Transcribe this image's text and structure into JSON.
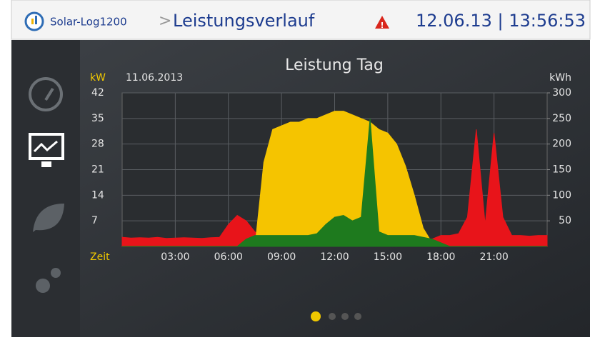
{
  "header": {
    "app": "Solar-Log1200",
    "separator": ">",
    "page": "Leistungsverlauf",
    "datetime": "12.06.13 | 13:56:53"
  },
  "chart_data": {
    "type": "area",
    "title": "Leistung Tag",
    "date": "11.06.2013",
    "ylabel": "kW",
    "y2label": "kWh",
    "xlabel": "Zeit",
    "x": [
      0,
      0.5,
      1,
      1.5,
      2,
      2.5,
      3,
      3.5,
      4,
      4.5,
      5,
      5.5,
      6,
      6.5,
      7,
      7.5,
      8,
      8.5,
      9,
      9.5,
      10,
      10.5,
      11,
      11.5,
      12,
      12.5,
      13,
      13.5,
      14,
      14.5,
      15,
      15.5,
      16,
      16.5,
      17,
      17.5,
      18,
      18.5,
      19,
      19.5,
      20,
      20.5,
      21,
      21.5,
      22,
      22.5,
      23,
      23.5,
      24
    ],
    "series": [
      {
        "color": "#e8141a",
        "values": [
          2.5,
          2.3,
          2.4,
          2.3,
          2.5,
          2.2,
          2.3,
          2.4,
          2.3,
          2.2,
          2.4,
          2.5,
          6,
          8.5,
          7,
          4,
          2,
          2,
          2,
          2,
          2,
          2,
          2,
          2,
          2,
          2,
          2,
          2,
          2,
          2,
          2,
          2,
          2,
          2,
          2,
          2,
          3,
          3,
          3.5,
          8,
          32,
          6,
          31,
          8,
          3,
          3,
          2.8,
          3,
          3
        ]
      },
      {
        "color": "#f5c400",
        "values": [
          0,
          0,
          0,
          0,
          0,
          0,
          0,
          0,
          0,
          0,
          0,
          0,
          0,
          0,
          0,
          0,
          23,
          32,
          33,
          34,
          34,
          35,
          35,
          36,
          37,
          37,
          36,
          35,
          34,
          32,
          31,
          28,
          22,
          14,
          5,
          1,
          0,
          0,
          0,
          0,
          0,
          0,
          0,
          0,
          0,
          0,
          0,
          0,
          0
        ]
      },
      {
        "color": "#1e7a1e",
        "values": [
          0,
          0,
          0,
          0,
          0,
          0,
          0,
          0,
          0,
          0,
          0,
          0,
          0,
          0,
          2,
          3,
          3,
          3,
          3,
          3,
          3,
          3,
          3.5,
          6,
          8,
          8.5,
          7,
          8,
          35,
          4,
          3,
          3,
          3,
          3,
          2.5,
          2,
          1,
          0,
          0,
          0,
          0,
          0,
          0,
          0,
          0,
          0,
          0,
          0,
          0
        ]
      }
    ],
    "xlim": [
      0,
      24
    ],
    "xticks": [
      {
        "value": 3,
        "label": "03:00"
      },
      {
        "value": 6,
        "label": "06:00"
      },
      {
        "value": 9,
        "label": "09:00"
      },
      {
        "value": 12,
        "label": "12:00"
      },
      {
        "value": 15,
        "label": "15:00"
      },
      {
        "value": 18,
        "label": "18:00"
      },
      {
        "value": 21,
        "label": "21:00"
      }
    ],
    "ylim": [
      0,
      42
    ],
    "yticks": [
      7,
      14,
      21,
      28,
      35,
      42
    ],
    "y2lim": [
      0,
      300
    ],
    "y2ticks": [
      50,
      100,
      150,
      200,
      250,
      300
    ],
    "grid": true
  }
}
